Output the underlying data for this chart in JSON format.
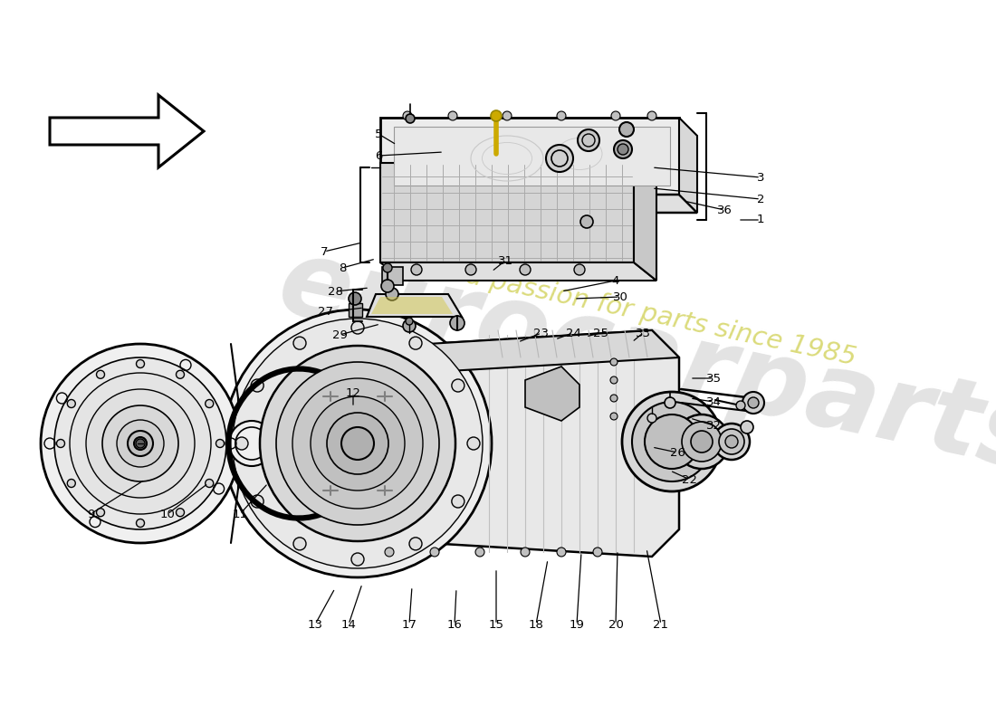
{
  "bg_color": "#ffffff",
  "part_labels": [
    [
      "1",
      840,
      243,
      815,
      243
    ],
    [
      "2",
      840,
      220,
      720,
      208
    ],
    [
      "3",
      840,
      196,
      720,
      185
    ],
    [
      "4",
      680,
      310,
      620,
      322
    ],
    [
      "5",
      418,
      148,
      438,
      160
    ],
    [
      "6",
      418,
      172,
      490,
      168
    ],
    [
      "7",
      358,
      278,
      400,
      268
    ],
    [
      "8",
      378,
      296,
      415,
      286
    ],
    [
      "9",
      100,
      568,
      160,
      530
    ],
    [
      "10",
      185,
      568,
      230,
      534
    ],
    [
      "11",
      265,
      568,
      296,
      534
    ],
    [
      "12",
      390,
      434,
      390,
      450
    ],
    [
      "13",
      348,
      690,
      370,
      650
    ],
    [
      "14",
      385,
      690,
      400,
      645
    ],
    [
      "15",
      548,
      690,
      548,
      628
    ],
    [
      "16",
      502,
      690,
      504,
      650
    ],
    [
      "17",
      452,
      690,
      455,
      648
    ],
    [
      "18",
      592,
      690,
      605,
      618
    ],
    [
      "19",
      637,
      690,
      642,
      610
    ],
    [
      "20",
      680,
      690,
      682,
      608
    ],
    [
      "21",
      730,
      690,
      714,
      606
    ],
    [
      "22",
      762,
      530,
      740,
      520
    ],
    [
      "23",
      598,
      368,
      572,
      378
    ],
    [
      "24",
      633,
      368,
      613,
      375
    ],
    [
      "25",
      663,
      368,
      647,
      372
    ],
    [
      "26",
      748,
      500,
      720,
      494
    ],
    [
      "27",
      360,
      345,
      402,
      340
    ],
    [
      "28",
      370,
      322,
      408,
      318
    ],
    [
      "29",
      375,
      370,
      420,
      358
    ],
    [
      "30",
      685,
      328,
      634,
      330
    ],
    [
      "31",
      558,
      288,
      543,
      300
    ],
    [
      "32",
      788,
      470,
      762,
      462
    ],
    [
      "33",
      710,
      368,
      698,
      378
    ],
    [
      "34",
      788,
      444,
      762,
      440
    ],
    [
      "35",
      788,
      418,
      762,
      418
    ],
    [
      "36",
      800,
      232,
      755,
      222
    ]
  ]
}
